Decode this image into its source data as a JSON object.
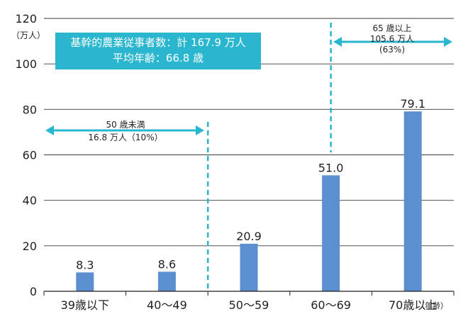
{
  "chart_data": {
    "type": "bar",
    "categories": [
      "39歳以下",
      "40～49",
      "50～59",
      "60～69",
      "70歳以上"
    ],
    "values": [
      8.3,
      8.6,
      20.9,
      51.0,
      79.1
    ],
    "value_labels": [
      "8.3",
      "8.6",
      "20.9",
      "51.0",
      "79.1"
    ],
    "ylim": [
      0,
      120
    ],
    "yticks": [
      0,
      20,
      40,
      60,
      80,
      100,
      120
    ],
    "ylabel": "（万人）",
    "x_unit_label": "（年齢）",
    "grid": true,
    "bar_color": "#5b8fd0",
    "accent_color": "#2bb6cf",
    "info_box": {
      "line1": "基幹的農業従事者数：計 167.9 万人",
      "line2": "平均年齢：66.8 歳"
    },
    "annotations": [
      {
        "lines": [
          "50 歳未満",
          "16.8 万人（10%）"
        ]
      },
      {
        "lines": [
          "65 歳以上",
          "105.6 万人",
          "(63%)"
        ]
      }
    ]
  }
}
